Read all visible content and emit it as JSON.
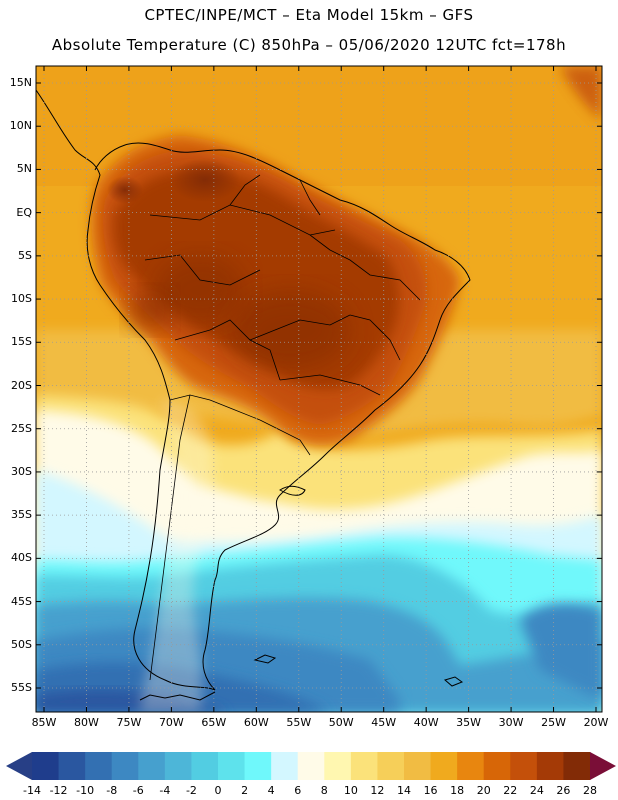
{
  "header": {
    "line1": "CPTEC/INPE/MCT –  Eta Model 15km – GFS",
    "line2": "Absolute Temperature (C) 850hPa – 05/06/2020 12UTC fct=178h"
  },
  "map": {
    "lat_labels": [
      "15N",
      "10N",
      "5N",
      "EQ",
      "5S",
      "10S",
      "15S",
      "20S",
      "25S",
      "30S",
      "35S",
      "40S",
      "45S",
      "50S",
      "55S"
    ],
    "lon_labels": [
      "85W",
      "80W",
      "75W",
      "70W",
      "65W",
      "60W",
      "55W",
      "50W",
      "45W",
      "40W",
      "35W",
      "30W",
      "25W",
      "20W"
    ]
  },
  "colorbar": {
    "labels": [
      "-14",
      "-12",
      "-10",
      "-8",
      "-6",
      "-4",
      "-2",
      "0",
      "2",
      "4",
      "6",
      "8",
      "10",
      "12",
      "14",
      "16",
      "18",
      "20",
      "22",
      "24",
      "26",
      "28"
    ],
    "colors": [
      "#1f3d8c",
      "#2a57a0",
      "#3370b2",
      "#3d88c2",
      "#46a0ce",
      "#4db6d8",
      "#52cde2",
      "#5ee2ec",
      "#6ff8fb",
      "#d3f7ff",
      "#fffbe8",
      "#fff7b0",
      "#fbe27a",
      "#f6cf59",
      "#f1bc43",
      "#f0aa1e",
      "#e8860f",
      "#d76607",
      "#c4500a",
      "#a43a06",
      "#822b06"
    ],
    "under_color": "#273f86",
    "over_color": "#7a0e37"
  }
}
